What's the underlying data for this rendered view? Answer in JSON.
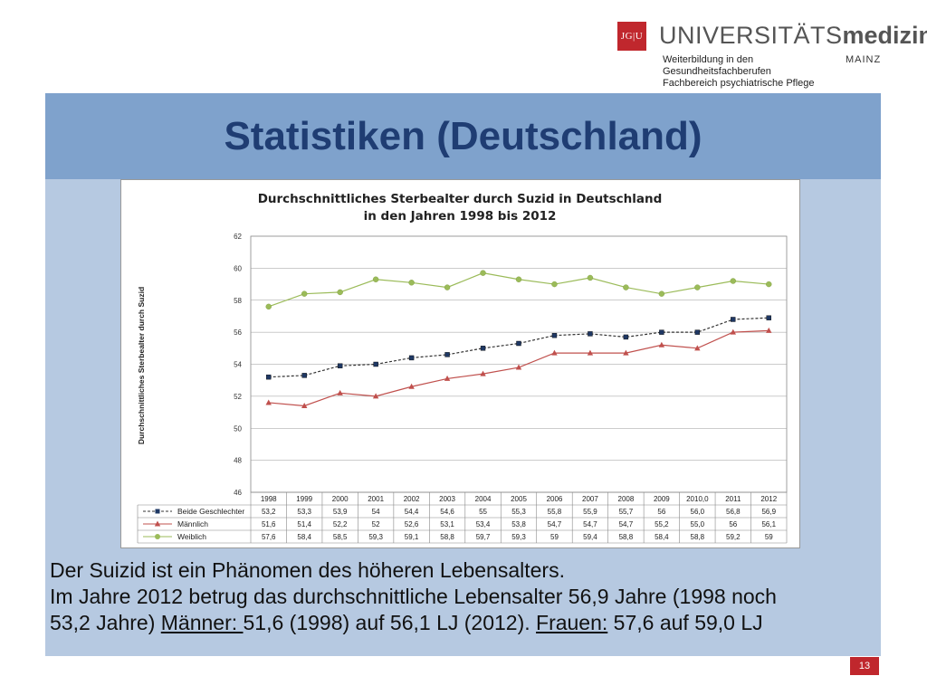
{
  "header": {
    "logo_text": "JG|U",
    "brand_light": "UNIVERSITÄTS",
    "brand_bold": "medizin.",
    "dept_lines": [
      "Weiterbildung in den",
      "Gesundheitsfachberufen",
      "Fachbereich psychiatrische Pflege"
    ],
    "place": "MAINZ"
  },
  "slide": {
    "title": "Statistiken (Deutschland)",
    "page_number": "13"
  },
  "body": {
    "line1": "Der Suizid ist ein Phänomen des höheren Lebensalters.",
    "line2": "Im Jahre 2012 betrug das durchschnittliche Lebensalter 56,9 Jahre  (1998 noch",
    "line3_a": "53,2  Jahre) ",
    "line3_maenner": "Männer: ",
    "line3_b": "51,6 (1998) auf 56,1 LJ (2012). ",
    "line3_frauen": "Frauen:",
    "line3_c": "  57,6 auf 59,0 LJ"
  },
  "chart_data": {
    "type": "line",
    "title_line1": "Durchschnittliches Sterbealter durch Suzid in Deutschland",
    "title_line2": "in den Jahren 1998 bis 2012",
    "ylabel": "Durchschnittliches Sterbealter durch Suzid",
    "ylim": [
      46,
      62
    ],
    "yticks": [
      "62",
      "60",
      "58",
      "56",
      "54",
      "52",
      "50",
      "48",
      "46"
    ],
    "categories": [
      "1998",
      "1999",
      "2000",
      "2001",
      "2002",
      "2003",
      "2004",
      "2005",
      "2006",
      "2007",
      "2008",
      "2009",
      "2010,0",
      "2011",
      "2012"
    ],
    "series": [
      {
        "name": "Beide Geschlechter",
        "color": "#1f3864",
        "marker": "square",
        "dashed": true,
        "values": [
          53.2,
          53.3,
          53.9,
          54,
          54.4,
          54.6,
          55,
          55.3,
          55.8,
          55.9,
          55.7,
          56,
          56.0,
          56.8,
          56.9
        ],
        "labels": [
          "53,2",
          "53,3",
          "53,9",
          "54",
          "54,4",
          "54,6",
          "55",
          "55,3",
          "55,8",
          "55,9",
          "55,7",
          "56",
          "56,0",
          "56,8",
          "56,9"
        ]
      },
      {
        "name": "Männlich",
        "color": "#c0504d",
        "marker": "triangle",
        "dashed": false,
        "values": [
          51.6,
          51.4,
          52.2,
          52,
          52.6,
          53.1,
          53.4,
          53.8,
          54.7,
          54.7,
          54.7,
          55.2,
          55.0,
          56,
          56.1
        ],
        "labels": [
          "51,6",
          "51,4",
          "52,2",
          "52",
          "52,6",
          "53,1",
          "53,4",
          "53,8",
          "54,7",
          "54,7",
          "54,7",
          "55,2",
          "55,0",
          "56",
          "56,1"
        ]
      },
      {
        "name": "Weiblich",
        "color": "#9bbb59",
        "marker": "circle",
        "dashed": false,
        "values": [
          57.6,
          58.4,
          58.5,
          59.3,
          59.1,
          58.8,
          59.7,
          59.3,
          59,
          59.4,
          58.8,
          58.4,
          58.8,
          59.2,
          59
        ],
        "labels": [
          "57,6",
          "58,4",
          "58,5",
          "59,3",
          "59,1",
          "58,8",
          "59,7",
          "59,3",
          "59",
          "59,4",
          "58,8",
          "58,4",
          "58,8",
          "59,2",
          "59"
        ]
      }
    ],
    "grid": true,
    "legend": "data-table"
  }
}
